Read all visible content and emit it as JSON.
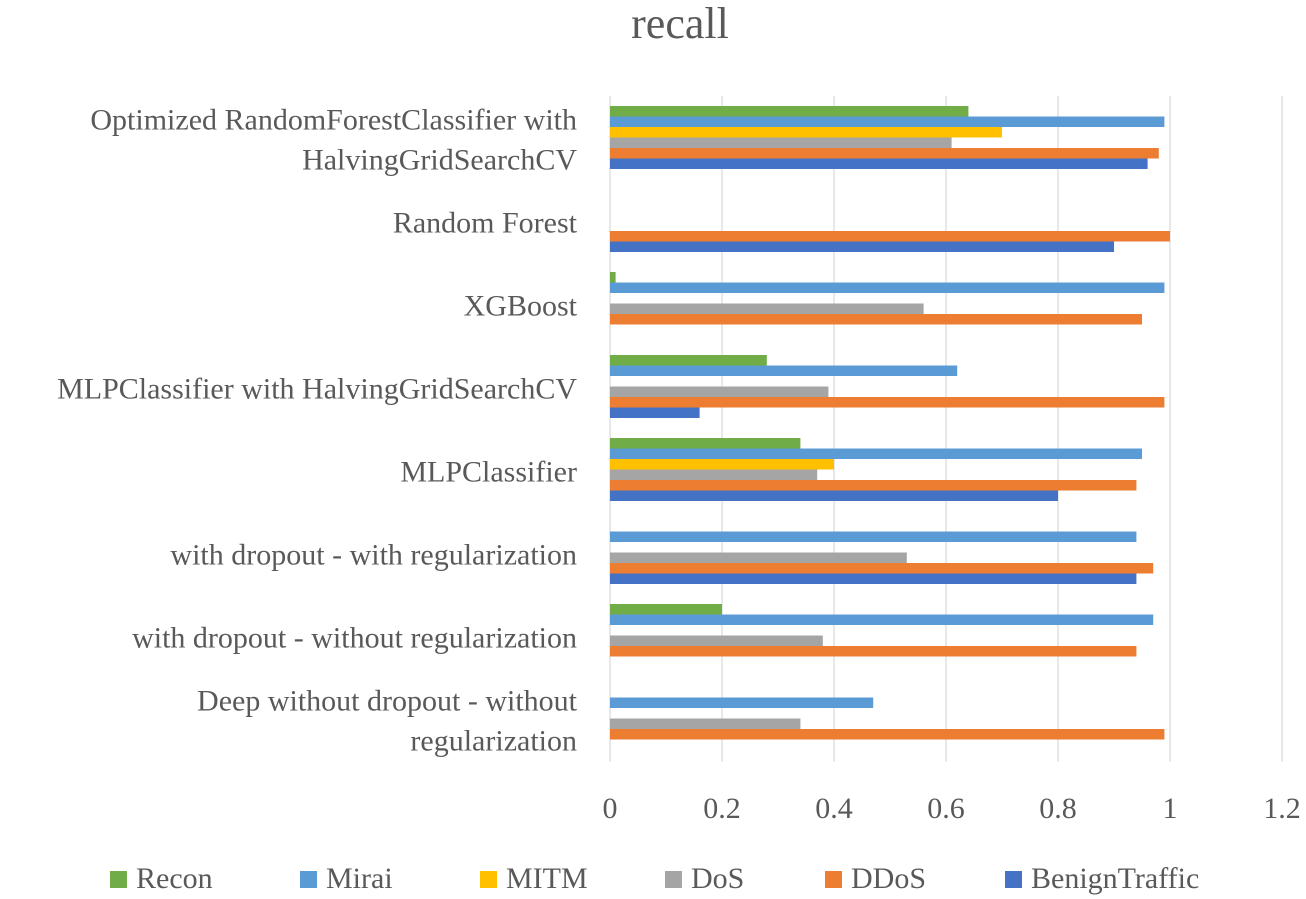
{
  "chart_data": {
    "type": "bar",
    "orientation": "horizontal",
    "title": "recall",
    "xlabel": "",
    "ylabel": "",
    "xlim": [
      0,
      1.2
    ],
    "x_ticks": [
      0,
      0.2,
      0.4,
      0.6,
      0.8,
      1,
      1.2
    ],
    "tick_labels": [
      "0",
      "0.2",
      "0.4",
      "0.6",
      "0.8",
      "1",
      "1.2"
    ],
    "grid": true,
    "legend_position": "bottom",
    "categories": [
      "Optimized RandomForestClassifier with HalvingGridSearchCV",
      "Random Forest",
      "XGBoost",
      "MLPClassifier with HalvingGridSearchCV",
      "MLPClassifier",
      "with dropout - with regularization",
      "with dropout - without regularization",
      "Deep without dropout - without regularization"
    ],
    "category_label_lines": [
      [
        "Optimized RandomForestClassifier with",
        "HalvingGridSearchCV"
      ],
      [
        "Random Forest"
      ],
      [
        "XGBoost"
      ],
      [
        "MLPClassifier with HalvingGridSearchCV"
      ],
      [
        "MLPClassifier"
      ],
      [
        "with dropout - with regularization"
      ],
      [
        "with dropout - without regularization"
      ],
      [
        "Deep without dropout - without",
        "regularization"
      ]
    ],
    "series": [
      {
        "name": "Recon",
        "color": "#70AD47",
        "values": [
          0.64,
          0,
          0.01,
          0.28,
          0.34,
          0,
          0.2,
          0
        ]
      },
      {
        "name": "Mirai",
        "color": "#5B9BD5",
        "values": [
          0.99,
          0,
          0.99,
          0.62,
          0.95,
          0.94,
          0.97,
          0.47
        ]
      },
      {
        "name": "MITM",
        "color": "#FFC000",
        "values": [
          0.7,
          0,
          0,
          0,
          0.4,
          0,
          0,
          0
        ]
      },
      {
        "name": "DoS",
        "color": "#A5A5A5",
        "values": [
          0.61,
          0,
          0.56,
          0.39,
          0.37,
          0.53,
          0.38,
          0.34
        ]
      },
      {
        "name": "DDoS",
        "color": "#ED7D31",
        "values": [
          0.98,
          1.0,
          0.95,
          0.99,
          0.94,
          0.97,
          0.94,
          0.99
        ]
      },
      {
        "name": "BenignTraffic",
        "color": "#4472C4",
        "values": [
          0.96,
          0.9,
          0,
          0.16,
          0.8,
          0.94,
          0,
          0
        ]
      }
    ]
  }
}
